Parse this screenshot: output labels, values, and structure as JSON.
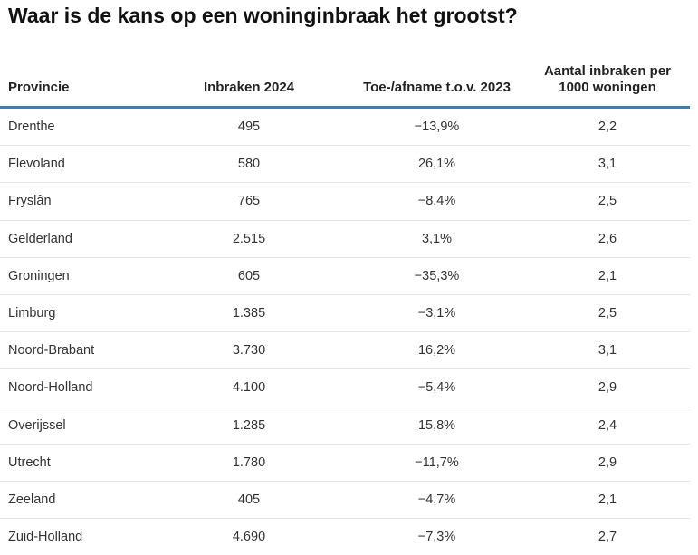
{
  "chart_data": {
    "type": "table",
    "title": "Waar is de kans op een woninginbraak het grootst?",
    "columns": [
      "Provincie",
      "Inbraken 2024",
      "Toe-/afname t.o.v. 2023",
      "Aantal inbraken per 1000 woningen"
    ],
    "rows": [
      [
        "Drenthe",
        "495",
        "−13,9%",
        "2,2"
      ],
      [
        "Flevoland",
        "580",
        "26,1%",
        "3,1"
      ],
      [
        "Fryslân",
        "765",
        "−8,4%",
        "2,5"
      ],
      [
        "Gelderland",
        "2.515",
        "3,1%",
        "2,6"
      ],
      [
        "Groningen",
        "605",
        "−35,3%",
        "2,1"
      ],
      [
        "Limburg",
        "1.385",
        "−3,1%",
        "2,5"
      ],
      [
        "Noord-Brabant",
        "3.730",
        "16,2%",
        "3,1"
      ],
      [
        "Noord-Holland",
        "4.100",
        "−5,4%",
        "2,9"
      ],
      [
        "Overijssel",
        "1.285",
        "15,8%",
        "2,4"
      ],
      [
        "Utrecht",
        "1.780",
        "−11,7%",
        "2,9"
      ],
      [
        "Zeeland",
        "405",
        "−4,7%",
        "2,1"
      ],
      [
        "Zuid-Holland",
        "4.690",
        "−7,3%",
        "2,7"
      ]
    ],
    "header_rule_color": "#3e7cb1"
  }
}
